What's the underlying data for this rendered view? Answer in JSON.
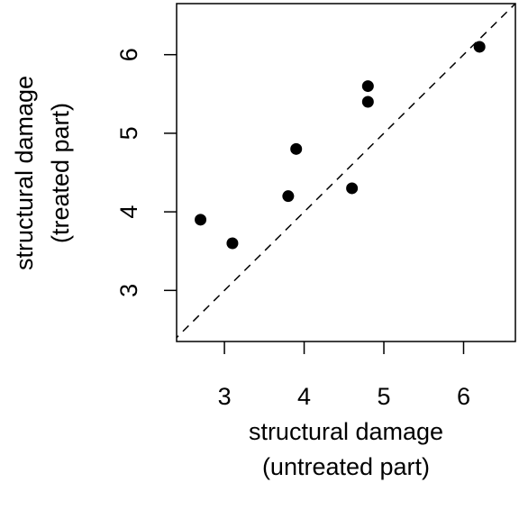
{
  "chart_data": {
    "type": "scatter",
    "xlabel": [
      "structural damage",
      "(untreated part)"
    ],
    "ylabel": [
      "structural damage",
      "(treated part)"
    ],
    "xlim": [
      2.4,
      6.65
    ],
    "ylim": [
      2.35,
      6.65
    ],
    "x_ticks": [
      3,
      4,
      5,
      6
    ],
    "y_ticks": [
      3,
      4,
      5,
      6
    ],
    "x_tick_labels": [
      "3",
      "4",
      "5",
      "6"
    ],
    "y_tick_labels": [
      "3",
      "4",
      "5",
      "6"
    ],
    "points": [
      {
        "x": 2.7,
        "y": 3.9
      },
      {
        "x": 3.1,
        "y": 3.6
      },
      {
        "x": 3.8,
        "y": 4.2
      },
      {
        "x": 3.9,
        "y": 4.8
      },
      {
        "x": 4.6,
        "y": 4.3
      },
      {
        "x": 4.8,
        "y": 5.4
      },
      {
        "x": 4.8,
        "y": 5.6
      },
      {
        "x": 6.2,
        "y": 6.1
      }
    ],
    "reference_line": {
      "type": "identity",
      "style": "dashed"
    },
    "grid": false,
    "legend": "none",
    "colors": {
      "points": "#000000",
      "axes": "#000000"
    }
  }
}
